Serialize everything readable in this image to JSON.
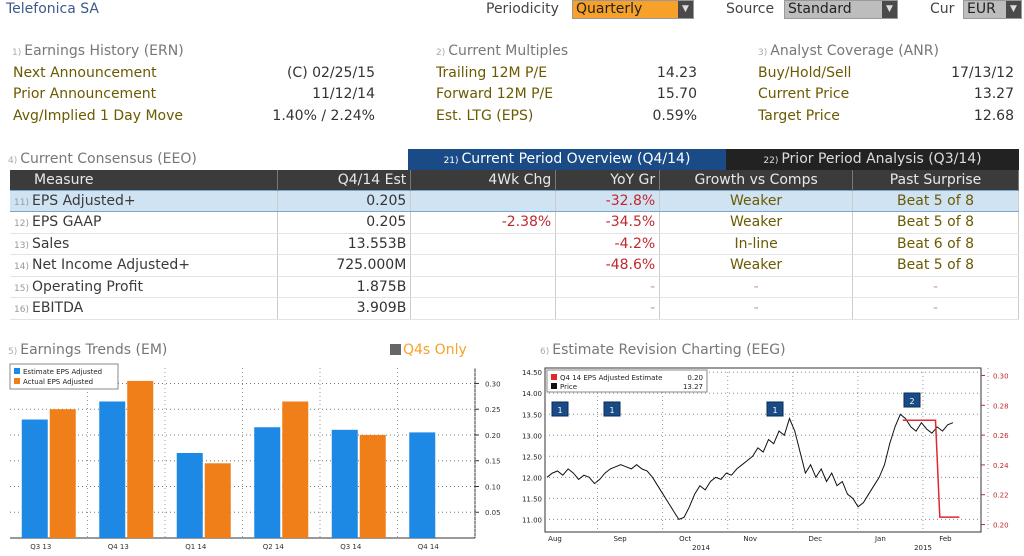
{
  "header": {
    "company": "Telefonica SA",
    "periodicity_label": "Periodicity",
    "periodicity_value": "Quarterly",
    "source_label": "Source",
    "source_value": "Standard",
    "cur_label": "Cur",
    "cur_value": "EUR"
  },
  "earnings_history": {
    "num": "1)",
    "title": "Earnings History (ERN)",
    "rows": [
      {
        "label": "Next Announcement",
        "value": "(C)  02/25/15"
      },
      {
        "label": "Prior Announcement",
        "value": "11/12/14"
      },
      {
        "label": "Avg/Implied 1 Day Move",
        "value": "1.40% / 2.24%"
      }
    ]
  },
  "current_multiples": {
    "num": "2)",
    "title": "Current Multiples",
    "rows": [
      {
        "label": "Trailing 12M P/E",
        "value": "14.23"
      },
      {
        "label": "Forward 12M P/E",
        "value": "15.70"
      },
      {
        "label": "Est. LTG (EPS)",
        "value": "0.59%"
      }
    ]
  },
  "analyst_coverage": {
    "num": "3)",
    "title": "Analyst Coverage (ANR)",
    "rows": [
      {
        "label": "Buy/Hold/Sell",
        "value": "17/13/12"
      },
      {
        "label": "Current Price",
        "value": "13.27"
      },
      {
        "label": "Target Price",
        "value": "12.68"
      }
    ]
  },
  "consensus": {
    "num": "4)",
    "title": "Current Consensus (EEO)",
    "tab_active_num": "21)",
    "tab_active": "Current Period Overview (Q4/14)",
    "tab_inactive_num": "22)",
    "tab_inactive": "Prior Period Analysis (Q3/14)",
    "columns": [
      "Measure",
      "Q4/14 Est",
      "4Wk Chg",
      "YoY Gr",
      "Growth vs Comps",
      "Past Surprise"
    ],
    "rows": [
      {
        "num": "11)",
        "measure": "EPS Adjusted+",
        "est": "0.205",
        "chg": "",
        "yoy": "-32.8%",
        "growth": "Weaker",
        "past": "Beat 5 of 8"
      },
      {
        "num": "12)",
        "measure": "EPS GAAP",
        "est": "0.205",
        "chg": "-2.38%",
        "yoy": "-34.5%",
        "growth": "Weaker",
        "past": "Beat 5 of 8"
      },
      {
        "num": "13)",
        "measure": "Sales",
        "est": "13.553B",
        "chg": "",
        "yoy": "-4.2%",
        "growth": "In-line",
        "past": "Beat 6 of 8"
      },
      {
        "num": "14)",
        "measure": "Net Income Adjusted+",
        "est": "725.000M",
        "chg": "",
        "yoy": "-48.6%",
        "growth": "Weaker",
        "past": "Beat 5 of 8"
      },
      {
        "num": "15)",
        "measure": "Operating Profit",
        "est": "1.875B",
        "chg": "",
        "yoy": "-",
        "growth": "-",
        "past": "-"
      },
      {
        "num": "16)",
        "measure": "EBITDA",
        "est": "3.909B",
        "chg": "",
        "yoy": "-",
        "growth": "-",
        "past": "-"
      }
    ]
  },
  "earnings_trends": {
    "num": "5)",
    "title": "Earnings Trends (EM)",
    "q4s_only": "Q4s Only"
  },
  "revision": {
    "num": "6)",
    "title": "Estimate Revision Charting (EEG)"
  },
  "chart_data": [
    {
      "type": "bar",
      "categories": [
        "Q3 13",
        "Q4 13",
        "Q1 14",
        "Q2 14",
        "Q3 14",
        "Q4 14"
      ],
      "series": [
        {
          "name": "Estimate EPS Adjusted",
          "color": "#1e88e5",
          "values": [
            0.23,
            0.265,
            0.165,
            0.215,
            0.21,
            0.205
          ]
        },
        {
          "name": "Actual EPS Adjusted",
          "color": "#f07f1a",
          "values": [
            0.25,
            0.305,
            0.145,
            0.265,
            0.2,
            null
          ]
        }
      ],
      "ylim": [
        0,
        0.33
      ],
      "yticks": [
        0.05,
        0.1,
        0.15,
        0.2,
        0.25,
        0.3
      ],
      "ytick_labels": [
        "0.05",
        "0.10",
        "0.15",
        "0.20",
        "0.25",
        "0.30"
      ],
      "grid": true,
      "legend": "top-left"
    },
    {
      "type": "line",
      "legend": [
        {
          "label": "Q4 14 EPS Adjusted Estimate",
          "value": "0.20",
          "color": "#e0282d"
        },
        {
          "label": "Price",
          "value": "13.27",
          "color": "#111111"
        }
      ],
      "x_labels": [
        "Aug",
        "Sep",
        "Oct",
        "Nov",
        "Dec",
        "Jan",
        "Feb"
      ],
      "year_labels": [
        "2014",
        "2015"
      ],
      "left_ylim": [
        10.7,
        14.6
      ],
      "left_yticks": [
        "11.00",
        "11.50",
        "12.00",
        "12.50",
        "13.00",
        "13.50",
        "14.00",
        "14.50"
      ],
      "right_ylim": [
        0.195,
        0.305
      ],
      "right_yticks": [
        "0.20",
        "0.22",
        "0.24",
        "0.26",
        "0.28",
        "0.30"
      ],
      "price_series": [
        12.0,
        12.1,
        12.15,
        12.05,
        12.2,
        12.1,
        11.95,
        12.05,
        12.0,
        11.85,
        11.95,
        12.1,
        12.2,
        12.25,
        12.3,
        12.25,
        12.2,
        12.3,
        12.2,
        12.15,
        12.0,
        11.8,
        11.6,
        11.4,
        11.2,
        11.0,
        11.05,
        11.3,
        11.6,
        11.8,
        11.7,
        11.9,
        12.0,
        11.95,
        12.1,
        12.05,
        12.2,
        12.3,
        12.4,
        12.5,
        12.7,
        12.6,
        12.9,
        12.8,
        13.1,
        13.0,
        13.4,
        13.1,
        12.6,
        12.1,
        12.3,
        12.0,
        12.2,
        11.9,
        12.1,
        11.8,
        11.9,
        11.6,
        11.5,
        11.3,
        11.4,
        11.6,
        11.8,
        12.0,
        12.3,
        12.8,
        13.2,
        13.5,
        13.4,
        13.2,
        13.1,
        13.3,
        13.15,
        13.05,
        13.2,
        13.1,
        13.25,
        13.3
      ],
      "estimate_series": [
        {
          "x": 0.66,
          "y": 0.27
        },
        {
          "x": 0.735,
          "y": 0.27
        },
        {
          "x": 0.745,
          "y": 0.205
        },
        {
          "x": 0.79,
          "y": 0.205
        }
      ],
      "event_markers": [
        "1",
        "1",
        "1",
        "2"
      ]
    }
  ]
}
